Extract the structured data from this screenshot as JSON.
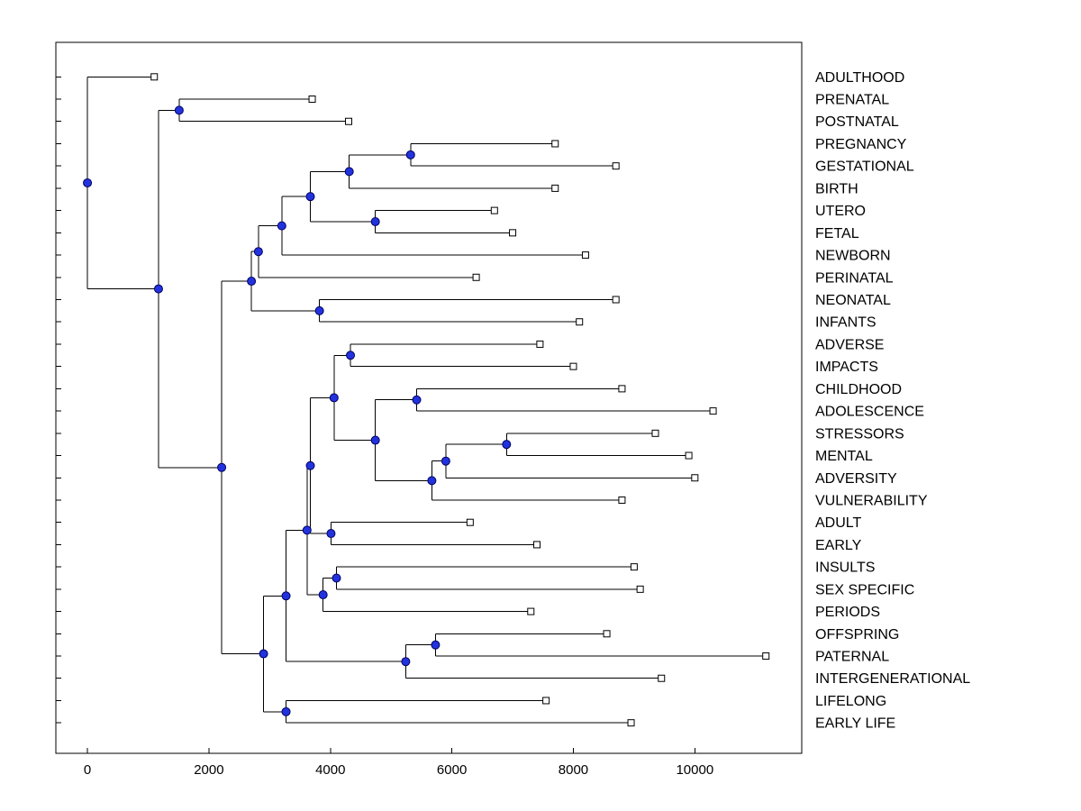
{
  "figure": {
    "background": "#ffffff"
  },
  "chart_data": {
    "type": "dendrogram",
    "orientation": "horizontal-root-left",
    "title": "",
    "xlabel": "",
    "ylabel": "",
    "grid": false,
    "legend": "none",
    "xticks": [
      0,
      2000,
      4000,
      6000,
      8000,
      10000
    ],
    "xtick_labels": [
      "0",
      "2000",
      "4000",
      "6000",
      "8000",
      "10000"
    ],
    "xlim": [
      -520,
      11760
    ],
    "style": {
      "line_color": "#000000",
      "axis_color": "#000000",
      "internal_marker_shape": "circle",
      "internal_marker_fill": "#2233dd",
      "internal_marker_stroke": "#000060",
      "leaf_marker_shape": "square",
      "leaf_marker_fill": "#ffffff",
      "leaf_marker_stroke": "#000000"
    },
    "leaves": [
      {
        "label": "ADULTHOOD",
        "x": 1100
      },
      {
        "label": "PRENATAL",
        "x": 3700
      },
      {
        "label": "POSTNATAL",
        "x": 4300
      },
      {
        "label": "PREGNANCY",
        "x": 7700
      },
      {
        "label": "GESTATIONAL",
        "x": 8700
      },
      {
        "label": "BIRTH",
        "x": 7700
      },
      {
        "label": "UTERO",
        "x": 6700
      },
      {
        "label": "FETAL",
        "x": 7000
      },
      {
        "label": "NEWBORN",
        "x": 8200
      },
      {
        "label": "PERINATAL",
        "x": 6400
      },
      {
        "label": "NEONATAL",
        "x": 8700
      },
      {
        "label": "INFANTS",
        "x": 8100
      },
      {
        "label": "ADVERSE",
        "x": 7450
      },
      {
        "label": "IMPACTS",
        "x": 8000
      },
      {
        "label": "CHILDHOOD",
        "x": 8800
      },
      {
        "label": "ADOLESCENCE",
        "x": 10300
      },
      {
        "label": "STRESSORS",
        "x": 9350
      },
      {
        "label": "MENTAL",
        "x": 9900
      },
      {
        "label": "ADVERSITY",
        "x": 10000
      },
      {
        "label": "VULNERABILITY",
        "x": 8800
      },
      {
        "label": "ADULT",
        "x": 6300
      },
      {
        "label": "EARLY",
        "x": 7400
      },
      {
        "label": "INSULTS",
        "x": 9000
      },
      {
        "label": "SEX SPECIFIC",
        "x": 9100
      },
      {
        "label": "PERIODS",
        "x": 7300
      },
      {
        "label": "OFFSPRING",
        "x": 8550
      },
      {
        "label": "PATERNAL",
        "x": 11170
      },
      {
        "label": "INTERGENERATIONAL",
        "x": 9450
      },
      {
        "label": "LIFELONG",
        "x": 7550
      },
      {
        "label": "EARLY LIFE",
        "x": 8950
      }
    ],
    "tree": {
      "x": 0,
      "c": [
        {
          "leaf": 0
        },
        {
          "x": 1170,
          "c": [
            {
              "x": 1510,
              "c": [
                {
                  "leaf": 1
                },
                {
                  "leaf": 2
                }
              ]
            },
            {
              "x": 2210,
              "c": [
                {
                  "x": 2700,
                  "c": [
                    {
                      "x": 2815,
                      "c": [
                        {
                          "x": 3200,
                          "c": [
                            {
                              "x": 3670,
                              "c": [
                                {
                                  "x": 4310,
                                  "c": [
                                    {
                                      "x": 5320,
                                      "c": [
                                        {
                                          "leaf": 3
                                        },
                                        {
                                          "leaf": 4
                                        }
                                      ]
                                    },
                                    {
                                      "leaf": 5
                                    }
                                  ]
                                },
                                {
                                  "x": 4740,
                                  "c": [
                                    {
                                      "leaf": 6
                                    },
                                    {
                                      "leaf": 7
                                    }
                                  ]
                                }
                              ]
                            },
                            {
                              "leaf": 8
                            }
                          ]
                        },
                        {
                          "leaf": 9
                        }
                      ]
                    },
                    {
                      "x": 3820,
                      "c": [
                        {
                          "leaf": 10
                        },
                        {
                          "leaf": 11
                        }
                      ]
                    }
                  ]
                },
                {
                  "x": 2900,
                  "c": [
                    {
                      "x": 3270,
                      "c": [
                        {
                          "x": 3615,
                          "c": [
                            {
                              "x": 3670,
                              "c": [
                                {
                                  "x": 4060,
                                  "c": [
                                    {
                                      "x": 4330,
                                      "c": [
                                        {
                                          "leaf": 12
                                        },
                                        {
                                          "leaf": 13
                                        }
                                      ]
                                    },
                                    {
                                      "x": 4740,
                                      "c": [
                                        {
                                          "x": 5420,
                                          "c": [
                                            {
                                              "leaf": 14
                                            },
                                            {
                                              "leaf": 15
                                            }
                                          ]
                                        },
                                        {
                                          "x": 5670,
                                          "c": [
                                            {
                                              "x": 5900,
                                              "c": [
                                                {
                                                  "x": 6900,
                                                  "c": [
                                                    {
                                                      "leaf": 16
                                                    },
                                                    {
                                                      "leaf": 17
                                                    }
                                                  ]
                                                },
                                                {
                                                  "leaf": 18
                                                }
                                              ]
                                            },
                                            {
                                              "leaf": 19
                                            }
                                          ]
                                        }
                                      ]
                                    }
                                  ]
                                },
                                {
                                  "x": 4010,
                                  "c": [
                                    {
                                      "leaf": 20
                                    },
                                    {
                                      "leaf": 21
                                    }
                                  ]
                                }
                              ]
                            },
                            {
                              "x": 3880,
                              "c": [
                                {
                                  "x": 4100,
                                  "c": [
                                    {
                                      "leaf": 22
                                    },
                                    {
                                      "leaf": 23
                                    }
                                  ]
                                },
                                {
                                  "leaf": 24
                                }
                              ]
                            }
                          ]
                        },
                        {
                          "x": 5240,
                          "c": [
                            {
                              "x": 5730,
                              "c": [
                                {
                                  "leaf": 25
                                },
                                {
                                  "leaf": 26
                                }
                              ]
                            },
                            {
                              "leaf": 27
                            }
                          ]
                        }
                      ]
                    },
                    {
                      "x": 3270,
                      "c": [
                        {
                          "leaf": 28
                        },
                        {
                          "leaf": 29
                        }
                      ]
                    }
                  ]
                }
              ]
            }
          ]
        }
      ]
    }
  }
}
